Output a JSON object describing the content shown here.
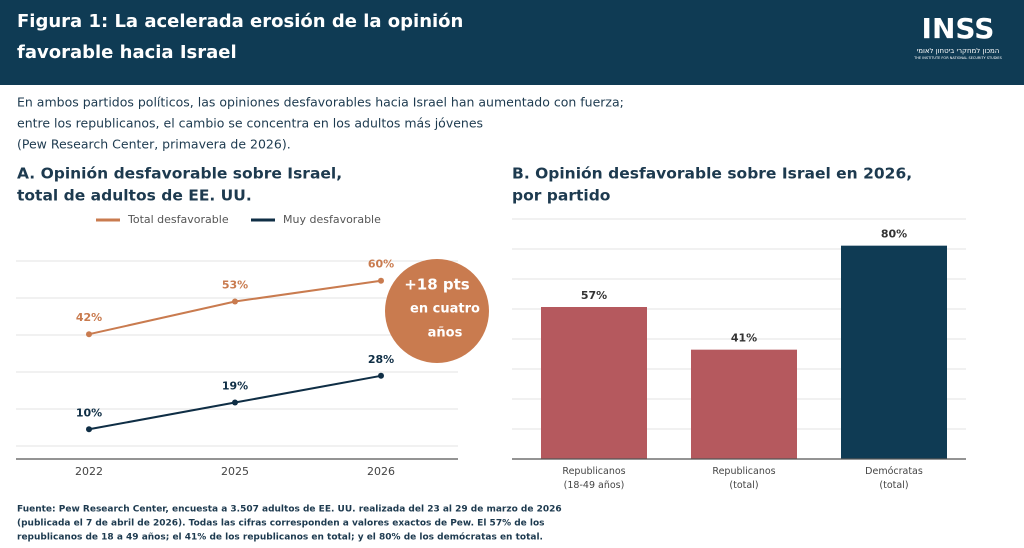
{
  "header": {
    "title": [
      "Figura 1: La acelerada erosión de la opinión",
      "favorable hacia Israel"
    ],
    "logo": "INSS",
    "logo_sub": [
      "המכון למחקרי ביטחון לאומי",
      "THE INSTITUTE FOR NATIONAL SECURITY STUDIES"
    ]
  },
  "subtitle": [
    "En ambos partidos políticos, las opiniones desfavorables hacia Israel han aumentado con fuerza;",
    "entre los republicanos, el cambio se concentra en los adultos más jóvenes",
    "(Pew Research Center, primavera de 2026)."
  ],
  "chart_data": [
    {
      "type": "line",
      "title": [
        "A. Opinión desfavorable sobre Israel,",
        "total de adultos de EE. UU."
      ],
      "categories": [
        "2022",
        "2025",
        "2026"
      ],
      "series": [
        {
          "name": "Total desfavorable",
          "color": "#c97b4f",
          "values": [
            42,
            53,
            60
          ],
          "value_labels": [
            "42%",
            "53%",
            "60%"
          ]
        },
        {
          "name": "Muy desfavorable",
          "color": "#0f2e45",
          "values": [
            10,
            19,
            28
          ],
          "value_labels": [
            "10%",
            "19%",
            "28%"
          ]
        }
      ],
      "ylim": [
        0,
        70
      ],
      "grid": true,
      "legend": "top",
      "annotation": [
        "+18 pts",
        "en cuatro",
        "años"
      ],
      "annotation_color": "#c97b4f"
    },
    {
      "type": "bar",
      "title": [
        "B. Opinión desfavorable sobre Israel en 2026,",
        "por partido"
      ],
      "categories": [
        "Republicanos\n(18-49 años)",
        "Republicanos\n(total)",
        "Demócratas\n(total)"
      ],
      "values": [
        57,
        41,
        80
      ],
      "value_labels": [
        "57%",
        "41%",
        "80%"
      ],
      "colors": [
        "#b5595e",
        "#b5595e",
        "#0f3b54"
      ],
      "ylim": [
        0,
        90
      ],
      "grid": true
    }
  ],
  "source": [
    "Fuente: Pew Research Center, encuesta a 3.507 adultos de EE. UU. realizada del 23 al 29 de marzo de 2026",
    "(publicada el 7 de abril de 2026). Todas las cifras corresponden a valores exactos de Pew. El 57% de los",
    "republicanos de 18 a 49 años; el 41% de los republicanos en total; y el 80% de los demócratas en total."
  ]
}
